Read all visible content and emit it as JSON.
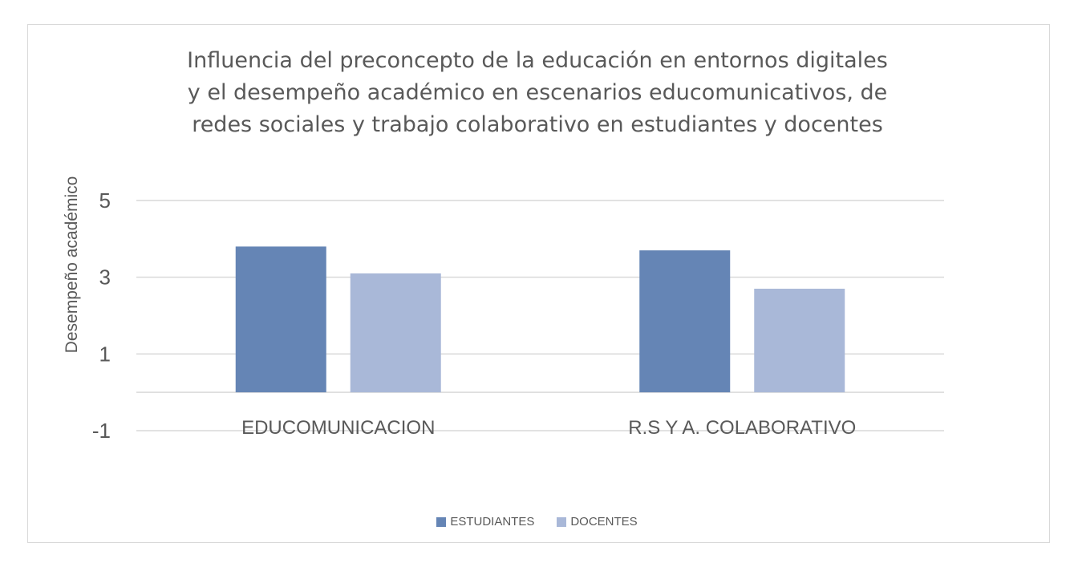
{
  "chart_data": {
    "type": "bar",
    "title_lines": [
      "Influencia del preconcepto de la educación en entornos digitales",
      "y el desempeño académico en escenarios educomunicativos, de",
      "redes sociales y trabajo colaborativo en estudiantes y docentes"
    ],
    "ylabel": "Desempeño académico",
    "xlabel": "",
    "categories": [
      "EDUCOMUNICACION",
      "R.S Y A. COLABORATIVO"
    ],
    "series": [
      {
        "name": "ESTUDIANTES",
        "color": "#6585b5",
        "values": [
          3.8,
          3.7
        ]
      },
      {
        "name": "DOCENTES",
        "color": "#a9b8d8",
        "values": [
          3.1,
          2.7
        ]
      }
    ],
    "yticks": [
      -1,
      1,
      3,
      5
    ],
    "ylim": [
      -1,
      5
    ],
    "grid": true,
    "legend": "bottom"
  }
}
